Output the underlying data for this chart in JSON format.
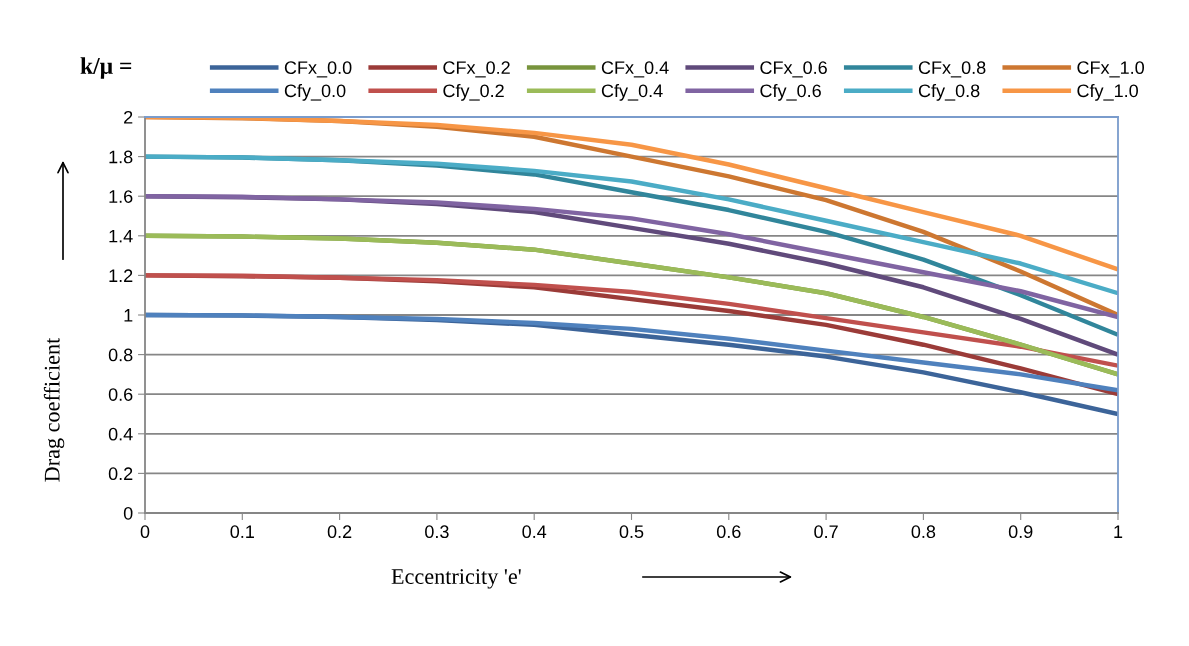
{
  "chart_data": {
    "type": "line",
    "xlabel": "Eccentricity 'e'",
    "ylabel": "Drag coefficient",
    "legend_title": "k/μ =",
    "legend": "top",
    "x": [
      0,
      0.1,
      0.2,
      0.3,
      0.4,
      0.5,
      0.6,
      0.7,
      0.8,
      0.9,
      1
    ],
    "xlim": [
      0,
      1
    ],
    "xticks": [
      0,
      0.1,
      0.2,
      0.3,
      0.4,
      0.5,
      0.6,
      0.7,
      0.8,
      0.9,
      1
    ],
    "ylim": [
      0,
      2
    ],
    "yticks": [
      0,
      0.2,
      0.4,
      0.6,
      0.8,
      1,
      1.2,
      1.4,
      1.6,
      1.8,
      2
    ],
    "grid": "y",
    "marker": "none",
    "line_style": "solid",
    "series": [
      {
        "name": "CFx_0.0",
        "color": "#3c6499",
        "values": [
          1,
          0.997,
          0.99,
          0.975,
          0.95,
          0.9,
          0.85,
          0.79,
          0.71,
          0.61,
          0.5
        ]
      },
      {
        "name": "CFx_0.2",
        "color": "#9b3b38",
        "values": [
          1.2,
          1.196,
          1.188,
          1.17,
          1.14,
          1.08,
          1.02,
          0.95,
          0.85,
          0.73,
          0.6
        ]
      },
      {
        "name": "CFx_0.4",
        "color": "#78943d",
        "values": [
          1.4,
          1.396,
          1.386,
          1.365,
          1.33,
          1.26,
          1.19,
          1.11,
          0.99,
          0.85,
          0.7
        ]
      },
      {
        "name": "CFx_0.6",
        "color": "#604a7b",
        "values": [
          1.6,
          1.595,
          1.584,
          1.56,
          1.52,
          1.44,
          1.36,
          1.26,
          1.14,
          0.98,
          0.8
        ]
      },
      {
        "name": "CFx_0.8",
        "color": "#31869b",
        "values": [
          1.8,
          1.795,
          1.782,
          1.755,
          1.71,
          1.62,
          1.53,
          1.42,
          1.28,
          1.1,
          0.9
        ]
      },
      {
        "name": "CFx_1.0",
        "color": "#cd7731",
        "values": [
          2,
          1.994,
          1.98,
          1.95,
          1.9,
          1.8,
          1.7,
          1.58,
          1.42,
          1.22,
          1
        ]
      },
      {
        "name": "Cfy_0.0",
        "color": "#4f81bd",
        "values": [
          1,
          0.998,
          0.99,
          0.98,
          0.96,
          0.93,
          0.88,
          0.82,
          0.76,
          0.7,
          0.62
        ]
      },
      {
        "name": "Cfy_0.2",
        "color": "#c0504d",
        "values": [
          1.2,
          1.198,
          1.188,
          1.176,
          1.152,
          1.116,
          1.056,
          0.984,
          0.912,
          0.84,
          0.744
        ]
      },
      {
        "name": "Cfy_0.4",
        "color": "#9bbb59",
        "values": [
          1.4,
          1.396,
          1.386,
          1.365,
          1.33,
          1.26,
          1.19,
          1.11,
          0.99,
          0.85,
          0.7
        ]
      },
      {
        "name": "Cfy_0.6",
        "color": "#8064a2",
        "values": [
          1.6,
          1.597,
          1.584,
          1.568,
          1.536,
          1.488,
          1.408,
          1.312,
          1.216,
          1.12,
          0.99
        ]
      },
      {
        "name": "Cfy_0.8",
        "color": "#4bacc6",
        "values": [
          1.8,
          1.796,
          1.782,
          1.764,
          1.728,
          1.674,
          1.584,
          1.476,
          1.368,
          1.26,
          1.11
        ]
      },
      {
        "name": "Cfy_1.0",
        "color": "#f79646",
        "values": [
          2,
          1.996,
          1.98,
          1.96,
          1.92,
          1.86,
          1.76,
          1.64,
          1.52,
          1.4,
          1.23
        ]
      }
    ]
  }
}
